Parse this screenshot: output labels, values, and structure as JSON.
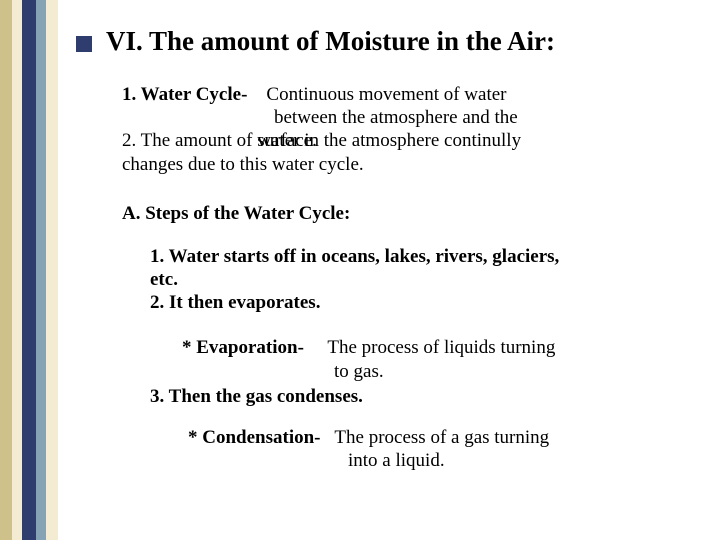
{
  "colors": {
    "stripe1": "#cec18a",
    "stripe2": "#f3ecd2",
    "stripe3": "#2e3c6e",
    "stripe4": "#85a3b5",
    "stripe5": "#f3ecd2",
    "background": "#ffffff",
    "text": "#000000",
    "bullet": "#2e3c6e"
  },
  "title": "VI. The amount of Moisture in the Air:",
  "p1_term": "1. Water Cycle-",
  "p1_def_l1": "Continuous movement of water",
  "p1_def_l2": "between the atmosphere and the",
  "p2_pre": "2. The amount of ",
  "p2_overlap_behind": "surface.",
  "p2_overlap_front": "water in",
  "p2_post": " the atmosphere continully",
  "p2_l2": "changes due to this water cycle.",
  "sectionA": "A. Steps of the Water Cycle:",
  "step1_l1": "1. Water starts off in oceans, lakes, rivers, glaciers,",
  "step1_l2": "etc.",
  "step2": "2. It then evaporates.",
  "evap_term": "* Evaporation-",
  "evap_def_l1": "The process of liquids turning",
  "evap_def_l2": "to gas.",
  "step3": "3. Then the gas condenses.",
  "cond_term": "* Condensation-",
  "cond_def_l1": "The process of a gas turning",
  "cond_def_l2": "into a liquid."
}
